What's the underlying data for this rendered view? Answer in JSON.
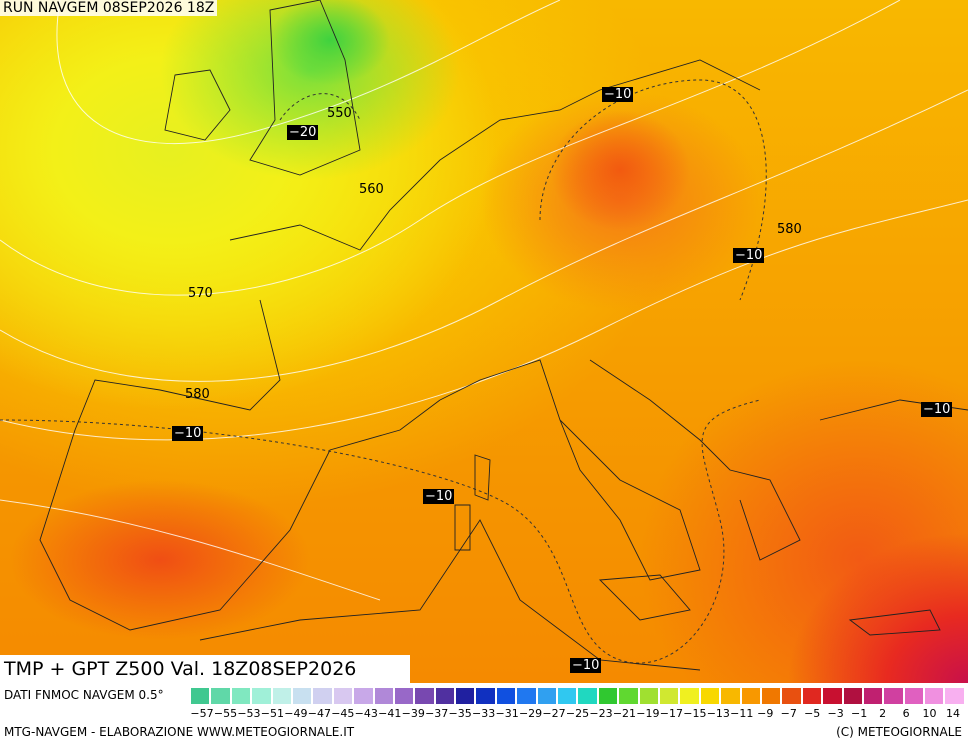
{
  "header": {
    "run": "RUN NAVGEM 08SEP2026 18Z",
    "product": "TMP + GPT Z500 Val. 18Z08SEP2026"
  },
  "height_labels": [
    "550",
    "560",
    "570",
    "580",
    "580"
  ],
  "temperature_labels": [
    "−20",
    "−10",
    "−10",
    "−10",
    "−10",
    "−10",
    "−10"
  ],
  "footer": {
    "source": "DATI FNMOC NAVGEM 0.5°",
    "credit": "MTG-NAVGEM - ELABORAZIONE WWW.METEOGIORNALE.IT",
    "copyright": "(C) METEOGIORNALE"
  },
  "colorbar": {
    "labels": [
      "−57",
      "−55",
      "−53",
      "−51",
      "−49",
      "−47",
      "−45",
      "−43",
      "−41",
      "−39",
      "−37",
      "−35",
      "−33",
      "−31",
      "−29",
      "−27",
      "−25",
      "−23",
      "−21",
      "−19",
      "−17",
      "−15",
      "−13",
      "−11",
      "−9",
      "−7",
      "−5",
      "−3",
      "−1",
      "2",
      "6",
      "10",
      "14"
    ],
    "colors": [
      "#40c890",
      "#60d8a8",
      "#80e8c0",
      "#a0f0d8",
      "#c0f0e8",
      "#c8e0f0",
      "#d0d0f0",
      "#d8c8f0",
      "#c8a8e8",
      "#b088d8",
      "#9868c8",
      "#7848b0",
      "#5030a0",
      "#2020a0",
      "#1030c0",
      "#1050e0",
      "#2078f0",
      "#30a0f0",
      "#30c8f0",
      "#20d8c0",
      "#30c830",
      "#60d830",
      "#a0e030",
      "#d0e830",
      "#f0f020",
      "#f8d800",
      "#f8b800",
      "#f89800",
      "#f07800",
      "#e85010",
      "#e02820",
      "#c81030",
      "#b01040",
      "#c02070",
      "#d040a0",
      "#e060c0",
      "#f090e0",
      "#f8b0f0"
    ]
  }
}
